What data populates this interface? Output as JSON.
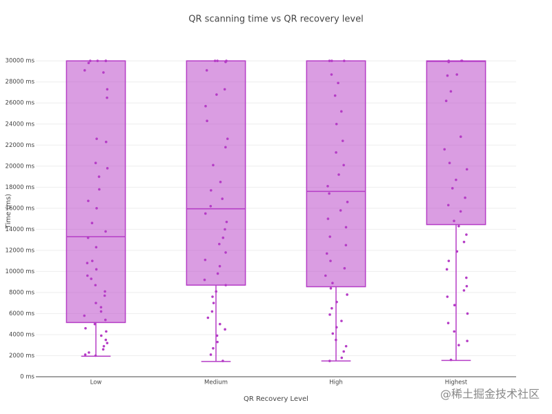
{
  "chart_data": {
    "type": "box",
    "title": "QR scanning time vs QR recovery level",
    "x_label": "QR Recovery Level",
    "y_label": "Time (ms)",
    "categories": [
      "Low",
      "Medium",
      "High",
      "Highest"
    ],
    "color": "#b53cc6",
    "grid": true,
    "ylim": [
      0,
      30800
    ],
    "yticks": [
      {
        "value": 0,
        "label": "0 ms"
      },
      {
        "value": 2000,
        "label": "2000 ms"
      },
      {
        "value": 4000,
        "label": "4000 ms"
      },
      {
        "value": 6000,
        "label": "6000 ms"
      },
      {
        "value": 8000,
        "label": "8000 ms"
      },
      {
        "value": 10000,
        "label": "10000 ms"
      },
      {
        "value": 12000,
        "label": "12000 ms"
      },
      {
        "value": 14000,
        "label": "14000 ms"
      },
      {
        "value": 16000,
        "label": "16000 ms"
      },
      {
        "value": 18000,
        "label": "18000 ms"
      },
      {
        "value": 20000,
        "label": "20000 ms"
      },
      {
        "value": 22000,
        "label": "22000 ms"
      },
      {
        "value": 24000,
        "label": "24000 ms"
      },
      {
        "value": 26000,
        "label": "26000 ms"
      },
      {
        "value": 28000,
        "label": "28000 ms"
      },
      {
        "value": 30000,
        "label": "30000 ms"
      }
    ],
    "boxes": [
      {
        "min": 1950,
        "q1": 5150,
        "median": 13300,
        "q3": 30000,
        "max": 30000,
        "points": [
          30000,
          30000,
          30000,
          30000,
          29800,
          29100,
          28900,
          27300,
          26500,
          22600,
          22300,
          20300,
          19800,
          19000,
          17800,
          16700,
          16000,
          14600,
          13800,
          13200,
          12300,
          11000,
          10800,
          10200,
          9600,
          9300,
          8700,
          8100,
          7700,
          7000,
          6600,
          6200,
          5800,
          5400,
          5000,
          4600,
          4300,
          3900,
          3500,
          3200,
          2900,
          2600,
          2300,
          2100,
          2000
        ]
      },
      {
        "min": 1450,
        "q1": 8700,
        "median": 15950,
        "q3": 30000,
        "max": 30000,
        "points": [
          30000,
          30000,
          30000,
          29900,
          29100,
          27300,
          26800,
          25700,
          24300,
          22600,
          21800,
          20100,
          18500,
          17700,
          16900,
          16200,
          15500,
          14700,
          14000,
          13200,
          12600,
          11800,
          11100,
          10500,
          9800,
          9200,
          8700,
          8100,
          7600,
          7000,
          6200,
          5600,
          5000,
          4500,
          3900,
          3300,
          2700,
          2100,
          1500
        ]
      },
      {
        "min": 1500,
        "q1": 8550,
        "median": 17600,
        "q3": 30000,
        "max": 30000,
        "points": [
          30000,
          30000,
          30000,
          28700,
          27900,
          26700,
          25200,
          24000,
          22400,
          21300,
          20100,
          19200,
          18100,
          17400,
          16600,
          15800,
          15000,
          14200,
          13300,
          12500,
          11700,
          11000,
          10300,
          9600,
          8900,
          8400,
          7800,
          7100,
          6500,
          5900,
          5300,
          4700,
          4100,
          3500,
          2900,
          2400,
          1800,
          1500
        ]
      },
      {
        "min": 1550,
        "q1": 14450,
        "median": 29950,
        "q3": 30000,
        "max": 30000,
        "points": [
          30000,
          30000,
          30000,
          29900,
          28700,
          28600,
          27100,
          26200,
          22800,
          21600,
          20300,
          19700,
          18700,
          17900,
          17000,
          16300,
          15700,
          14800,
          14300,
          13500,
          12800,
          11900,
          11000,
          10200,
          9400,
          8600,
          8200,
          7600,
          6800,
          6000,
          5100,
          4300,
          3400,
          3000,
          1600
        ]
      }
    ]
  },
  "watermark": "@稀土掘金技术社区"
}
